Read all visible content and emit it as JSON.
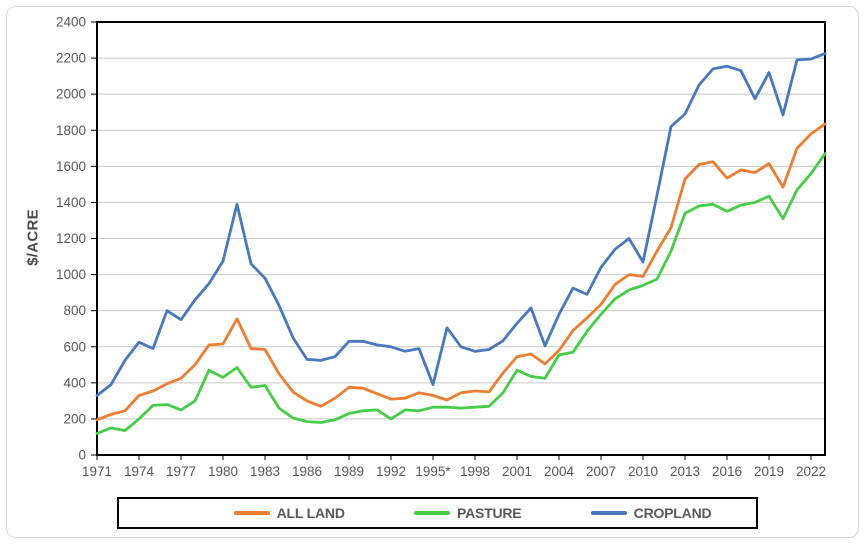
{
  "chart_data": {
    "type": "line",
    "title": "",
    "ylabel": "$/ACRE",
    "xlabel": "",
    "ylim": [
      0,
      2400
    ],
    "y_tick_step": 200,
    "grid": true,
    "legend_position": "bottom-boxed",
    "x": [
      1971,
      1972,
      1973,
      1974,
      1975,
      1976,
      1977,
      1978,
      1979,
      1980,
      1981,
      1982,
      1983,
      1984,
      1985,
      1986,
      1987,
      1988,
      1989,
      1990,
      1991,
      1992,
      1993,
      1994,
      1995,
      1996,
      1997,
      1998,
      1999,
      2000,
      2001,
      2002,
      2003,
      2004,
      2005,
      2006,
      2007,
      2008,
      2009,
      2010,
      2011,
      2012,
      2013,
      2014,
      2015,
      2016,
      2017,
      2018,
      2019,
      2020,
      2021,
      2022,
      2023
    ],
    "x_tick_labels": [
      "1971",
      "1974",
      "1977",
      "1980",
      "1983",
      "1986",
      "1989",
      "1992",
      "1995*",
      "1998",
      "2001",
      "2004",
      "2007",
      "2010",
      "2013",
      "2016",
      "2019",
      "2022"
    ],
    "series": [
      {
        "name": "ALL LAND",
        "color": "#ED7D31",
        "values": [
          195,
          225,
          245,
          330,
          355,
          395,
          425,
          500,
          610,
          615,
          755,
          590,
          585,
          450,
          350,
          300,
          270,
          315,
          375,
          370,
          340,
          310,
          315,
          345,
          330,
          305,
          345,
          355,
          350,
          455,
          545,
          560,
          505,
          580,
          690,
          760,
          835,
          945,
          1000,
          990,
          1130,
          1260,
          1530,
          1610,
          1625,
          1535,
          1580,
          1565,
          1615,
          1485,
          1700,
          1780,
          1835
        ]
      },
      {
        "name": "PASTURE",
        "color": "#47CC47",
        "values": [
          120,
          150,
          135,
          200,
          275,
          280,
          250,
          300,
          470,
          430,
          485,
          375,
          385,
          260,
          205,
          185,
          180,
          195,
          230,
          245,
          250,
          200,
          250,
          245,
          265,
          265,
          260,
          265,
          270,
          345,
          470,
          435,
          425,
          555,
          570,
          685,
          780,
          865,
          915,
          940,
          975,
          1130,
          1340,
          1380,
          1390,
          1350,
          1385,
          1400,
          1435,
          1310,
          1470,
          1560,
          1670
        ]
      },
      {
        "name": "CROPLAND",
        "color": "#4879BD",
        "values": [
          330,
          390,
          525,
          625,
          590,
          800,
          750,
          860,
          950,
          1075,
          1390,
          1060,
          980,
          830,
          650,
          530,
          525,
          545,
          630,
          630,
          610,
          600,
          575,
          590,
          390,
          705,
          600,
          575,
          585,
          633,
          730,
          815,
          605,
          780,
          925,
          890,
          1040,
          1140,
          1200,
          1070,
          1440,
          1820,
          1890,
          2050,
          2140,
          2155,
          2130,
          1975,
          2120,
          1885,
          2190,
          2195,
          2225
        ]
      }
    ],
    "colors": {
      "gridline": "#c9c9c9",
      "axis_text": "#595959",
      "plot_border": "#000000",
      "legend_border": "#000000",
      "frame_border": "#d8d8d8"
    }
  }
}
